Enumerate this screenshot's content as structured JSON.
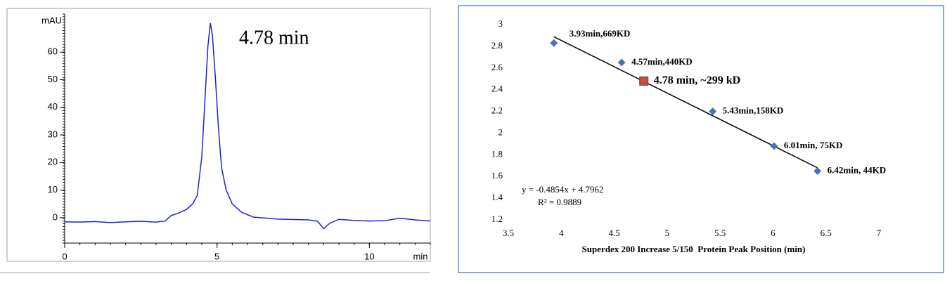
{
  "chart_data": [
    {
      "type": "line",
      "ylabel": "mAU",
      "xlabel": "min",
      "annotation": "4.78 min",
      "annotation_color": "#e8191b",
      "xlim": [
        0,
        12
      ],
      "ylim": [
        -9.2,
        73.8
      ],
      "xticks": [
        0,
        5,
        10
      ],
      "yticks": [
        0,
        10,
        20,
        30,
        40,
        50,
        60
      ],
      "x": [
        0,
        0.5,
        1,
        1.5,
        2,
        2.5,
        3,
        3.3,
        3.5,
        3.7,
        4,
        4.2,
        4.35,
        4.5,
        4.6,
        4.7,
        4.78,
        4.85,
        4.95,
        5.05,
        5.15,
        5.3,
        5.5,
        5.8,
        6.2,
        7,
        8,
        8.3,
        8.5,
        8.7,
        9,
        9.5,
        10,
        10.5,
        11,
        11.5,
        12
      ],
      "series": [
        {
          "color": "#1f1fe0",
          "values": [
            -1.5,
            -1.6,
            -1.4,
            -1.8,
            -1.5,
            -1.3,
            -1.6,
            -1.2,
            0.8,
            1.5,
            3,
            5,
            8,
            22,
            42,
            62,
            70.5,
            66,
            50,
            32,
            18,
            10,
            5,
            2,
            0.2,
            -0.5,
            -0.8,
            -1.3,
            -4,
            -2,
            -0.6,
            -1,
            -1.2,
            -1.1,
            -0.2,
            -0.8,
            -1.2
          ]
        }
      ]
    },
    {
      "type": "scatter",
      "xlabel": "Superdex 200 Increase 5/150  Protein Peak Position (min)",
      "xlim": [
        3.5,
        7
      ],
      "ylim": [
        1.2,
        3
      ],
      "xticks": [
        3.5,
        4,
        4.5,
        5,
        5.5,
        6,
        6.5,
        7
      ],
      "yticks": [
        1.2,
        1.4,
        1.6,
        1.8,
        2,
        2.2,
        2.4,
        2.6,
        2.8,
        3
      ],
      "series": [
        {
          "marker": "diamond",
          "color": "#4a72b8",
          "label_color": "#000000",
          "x": [
            3.93,
            4.57,
            5.43,
            6.01,
            6.42
          ],
          "values": [
            2.83,
            2.65,
            2.2,
            1.88,
            1.65
          ],
          "labels": [
            "3.93min,669KD",
            "4.57min,440KD",
            "5.43min,158KD",
            "6.01min, 75KD",
            "6.42min, 44KD"
          ]
        },
        {
          "marker": "square",
          "color": "#c0504d",
          "label_color": "#c00000",
          "x": [
            4.78
          ],
          "values": [
            2.48
          ],
          "labels": [
            "4.78 min, ~299 kD"
          ]
        }
      ],
      "trendline": {
        "color": "#000000",
        "x": [
          3.93,
          6.42
        ],
        "values": [
          2.888,
          1.68
        ]
      },
      "annotations": [
        "y = -0.4854x + 4.7962",
        "R² = 0.9889"
      ]
    }
  ]
}
